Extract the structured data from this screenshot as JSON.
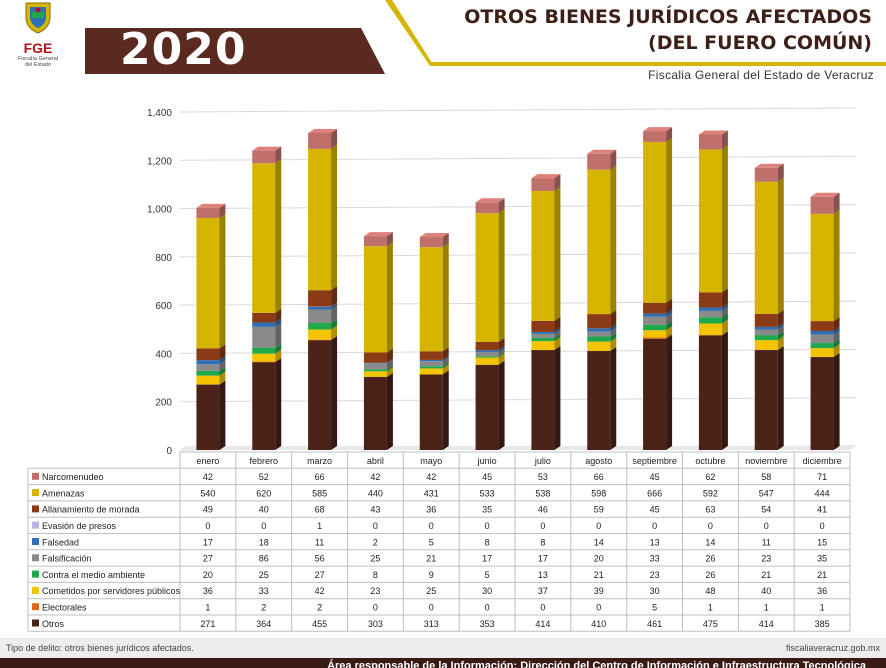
{
  "header": {
    "logo_name": "FGE",
    "logo_sub_line1": "Fiscalía General",
    "logo_sub_line2": "del Estado",
    "year": "2020",
    "title_line1": "OTROS BIENES JURÍDICOS AFECTADOS",
    "title_line2": "(DEL FUERO COMÚN)",
    "subtitle": "Fiscalia General del Estado de Veracruz"
  },
  "colors": {
    "brand_brown": "#5a2a21",
    "brand_gold": "#d6b500"
  },
  "chart_data": {
    "type": "bar",
    "stacked": true,
    "categories": [
      "enero",
      "febrero",
      "marzo",
      "abril",
      "mayo",
      "junio",
      "julio",
      "agosto",
      "septiembre",
      "octubre",
      "noviembre",
      "diciembre"
    ],
    "ylim": [
      0,
      1400
    ],
    "yticks": [
      "0",
      "200",
      "400",
      "600",
      "800",
      "1,000",
      "1,200",
      "1,400"
    ],
    "ytick_values": [
      0,
      200,
      400,
      600,
      800,
      1000,
      1200,
      1400
    ],
    "grid": true,
    "legend": "table-below",
    "series": [
      {
        "name": "Otros",
        "color": "#4a2218",
        "values": [
          271,
          364,
          455,
          303,
          313,
          353,
          414,
          410,
          461,
          475,
          414,
          385
        ]
      },
      {
        "name": "Electorales",
        "color": "#e0661b",
        "values": [
          1,
          2,
          2,
          0,
          0,
          0,
          0,
          0,
          5,
          1,
          1,
          1
        ]
      },
      {
        "name": "Cometidos por servidores públicos",
        "color": "#f5c400",
        "values": [
          36,
          33,
          42,
          23,
          25,
          30,
          37,
          39,
          30,
          48,
          40,
          36
        ]
      },
      {
        "name": "Contra el medio ambiente",
        "color": "#1fa84c",
        "values": [
          20,
          25,
          27,
          8,
          9,
          5,
          13,
          21,
          23,
          26,
          21,
          21
        ]
      },
      {
        "name": "Falsificación",
        "color": "#8a8a8a",
        "values": [
          27,
          86,
          56,
          25,
          21,
          17,
          17,
          20,
          33,
          26,
          23,
          35
        ]
      },
      {
        "name": "Falsedad",
        "color": "#2f6fb5",
        "values": [
          17,
          18,
          11,
          2,
          5,
          8,
          8,
          14,
          13,
          14,
          11,
          15
        ]
      },
      {
        "name": "Evasión de presos",
        "color": "#b9b4e6",
        "values": [
          0,
          0,
          1,
          0,
          0,
          0,
          0,
          0,
          0,
          0,
          0,
          0
        ]
      },
      {
        "name": "Allanamiento de morada",
        "color": "#8b3a16",
        "values": [
          49,
          40,
          68,
          43,
          36,
          35,
          46,
          59,
          45,
          63,
          54,
          41
        ]
      },
      {
        "name": "Amenazas",
        "color": "#d6b500",
        "values": [
          540,
          620,
          585,
          440,
          431,
          533,
          538,
          598,
          666,
          592,
          547,
          444
        ]
      },
      {
        "name": "Narcomenudeo",
        "color": "#c0706a",
        "values": [
          42,
          52,
          66,
          42,
          42,
          45,
          53,
          66,
          45,
          62,
          58,
          71
        ]
      }
    ]
  },
  "bottom": {
    "left": "Tipo de delito: otros bienes jurídicos afectados.",
    "right": "fiscaliaveracruz.gob.mx"
  },
  "footer": {
    "text": "Área responsable de la Información: Dirección del Centro de Información e Infraestructura Tecnológica"
  }
}
